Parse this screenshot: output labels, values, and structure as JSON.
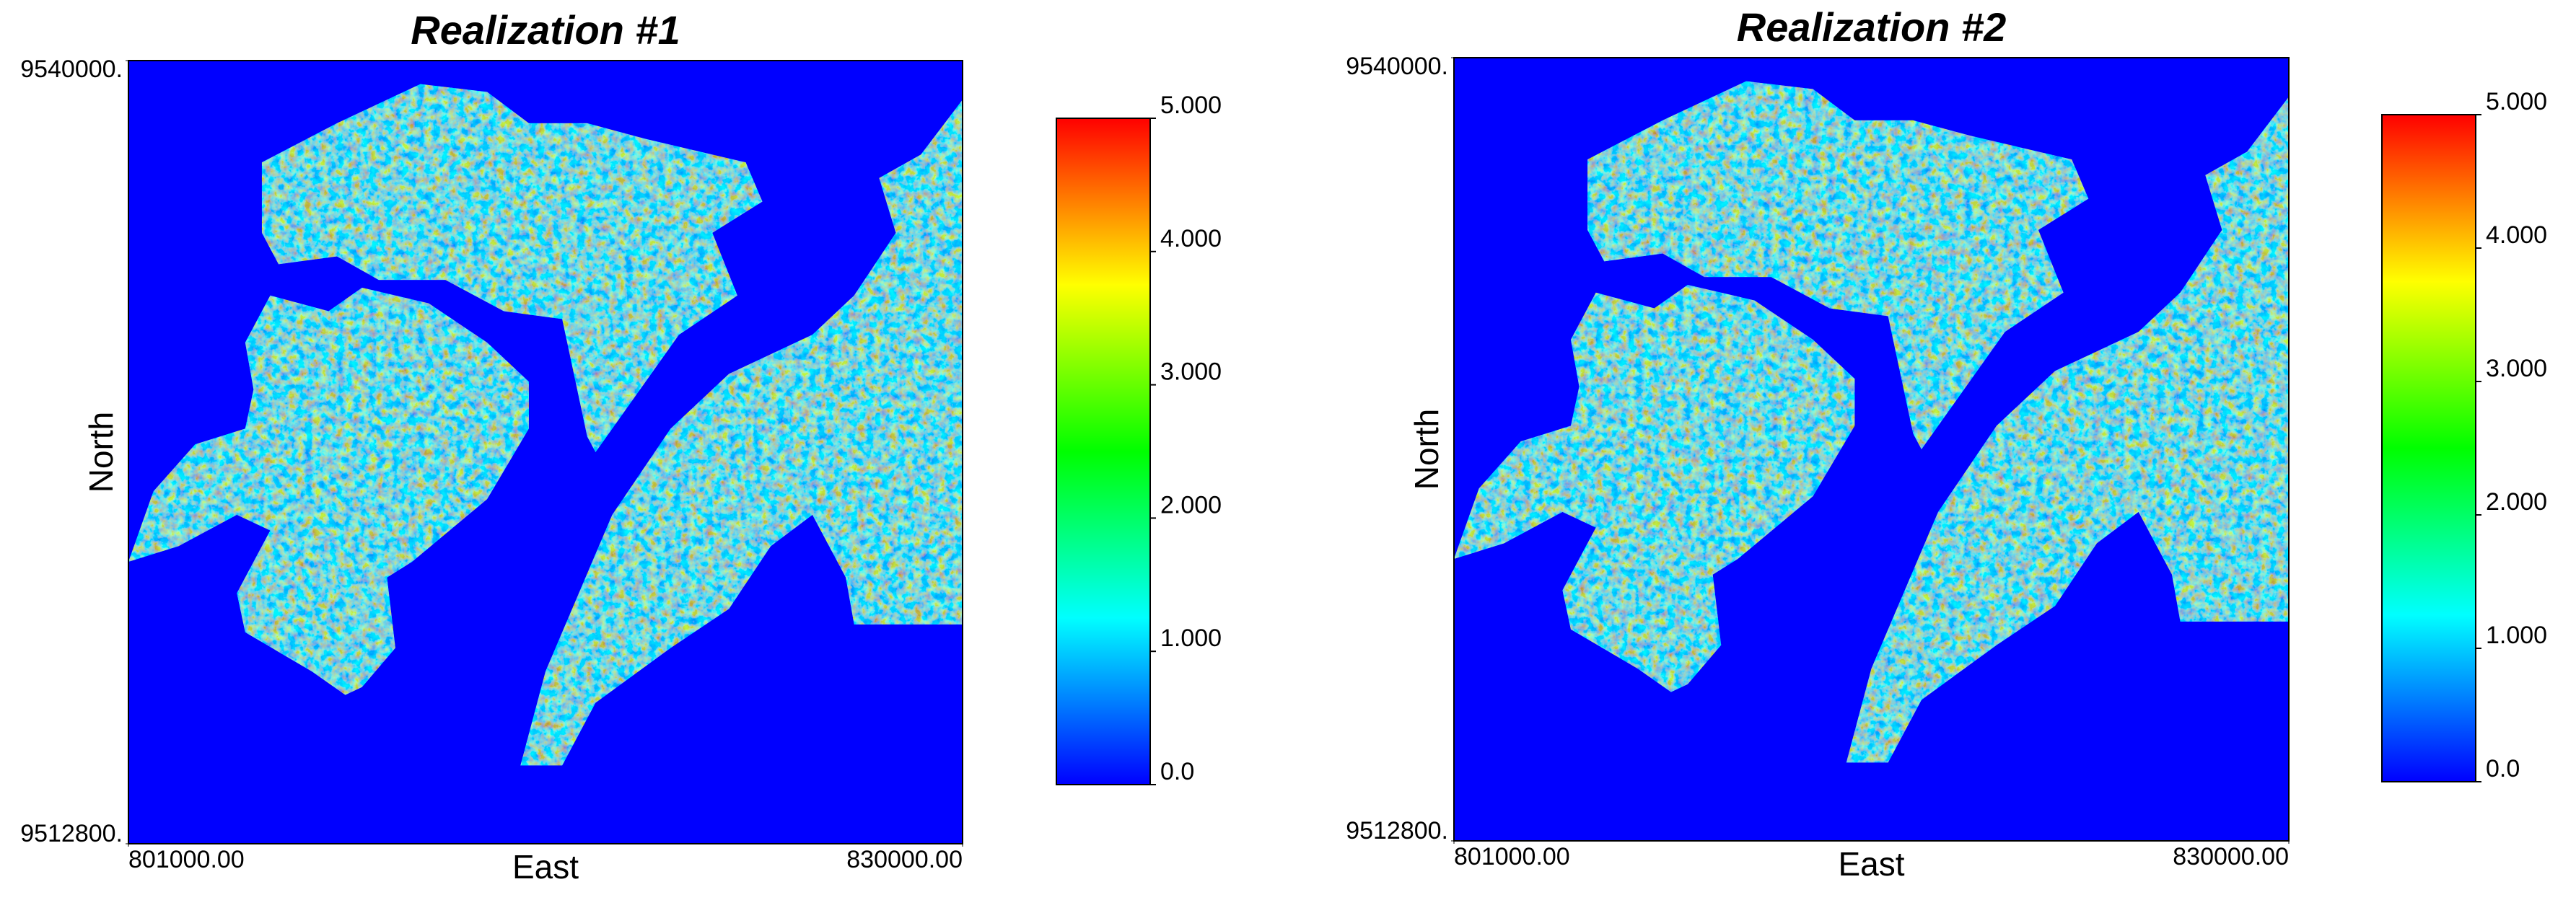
{
  "chart_data": [
    {
      "type": "raster",
      "title": "Realization #1",
      "x_label": "East",
      "y_label": "North",
      "xlim": [
        801000,
        830000
      ],
      "xticks": [
        {
          "value": 801000,
          "label": "801000.00"
        },
        {
          "value": 830000,
          "label": "830000.00"
        }
      ],
      "ylim": [
        9512800,
        9540000
      ],
      "yticks": [
        {
          "value": 9512800,
          "label": "9512800."
        },
        {
          "value": 9540000,
          "label": "9540000."
        }
      ],
      "zlim": [
        0,
        5
      ],
      "zticks": [
        {
          "value": 0,
          "label": "0.0"
        },
        {
          "value": 1,
          "label": "1.000"
        },
        {
          "value": 2,
          "label": "2.000"
        },
        {
          "value": 3,
          "label": "3.000"
        },
        {
          "value": 4,
          "label": "4.000"
        },
        {
          "value": 5,
          "label": "5.000"
        }
      ],
      "colormap": [
        "#0000ff",
        "#00ffff",
        "#00ff00",
        "#ffff00",
        "#ff0000"
      ],
      "background": "#0000ff"
    },
    {
      "type": "raster",
      "title": "Realization #2",
      "x_label": "East",
      "y_label": "North",
      "xlim": [
        801000,
        830000
      ],
      "xticks": [
        {
          "value": 801000,
          "label": "801000.00"
        },
        {
          "value": 830000,
          "label": "830000.00"
        }
      ],
      "ylim": [
        9512800,
        9540000
      ],
      "yticks": [
        {
          "value": 9512800,
          "label": "9512800."
        },
        {
          "value": 9540000,
          "label": "9540000."
        }
      ],
      "zlim": [
        0,
        5
      ],
      "zticks": [
        {
          "value": 0,
          "label": "0.0"
        },
        {
          "value": 1,
          "label": "1.000"
        },
        {
          "value": 2,
          "label": "2.000"
        },
        {
          "value": 3,
          "label": "3.000"
        },
        {
          "value": 4,
          "label": "4.000"
        },
        {
          "value": 5,
          "label": "5.000"
        }
      ],
      "colormap": [
        "#0000ff",
        "#00ffff",
        "#00ff00",
        "#ffff00",
        "#ff0000"
      ],
      "background": "#0000ff"
    }
  ]
}
